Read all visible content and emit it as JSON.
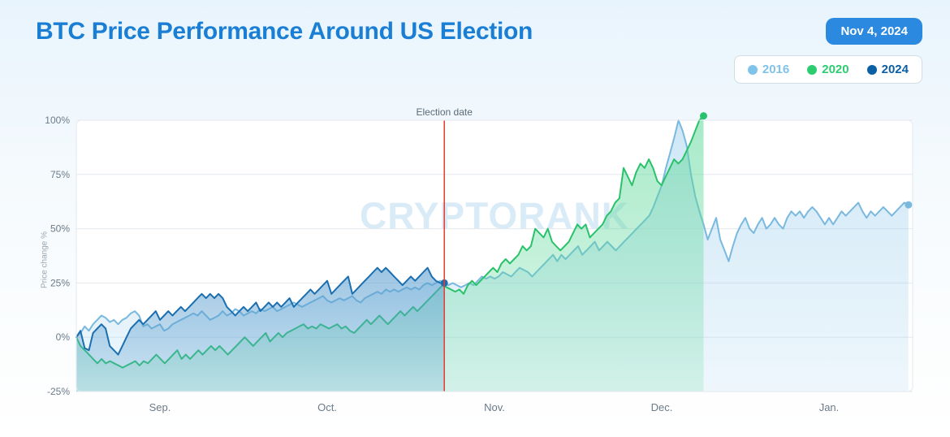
{
  "header": {
    "title": "BTC Price Performance Around US Election",
    "date_badge": "Nov 4, 2024"
  },
  "watermark": "CRYPTORANK",
  "y_axis_label": "Price change %",
  "legend": {
    "items": [
      {
        "label": "2016",
        "color": "#7fc3ea"
      },
      {
        "label": "2020",
        "color": "#2ecc71"
      },
      {
        "label": "2024",
        "color": "#0b5fa5"
      }
    ]
  },
  "chart": {
    "type": "area",
    "background_color": "#ffffff",
    "grid_color": "#e3e8ee",
    "ylim": [
      -25,
      100
    ],
    "ytick_step": 25,
    "y_ticks": [
      -25,
      0,
      25,
      50,
      75,
      100
    ],
    "y_tick_labels": [
      "-25%",
      "0%",
      "25%",
      "50%",
      "75%",
      "100%"
    ],
    "x_ticks": [
      20,
      60,
      100,
      140,
      180
    ],
    "x_tick_labels": [
      "Sep.",
      "Oct.",
      "Nov.",
      "Dec.",
      "Jan."
    ],
    "x_range": [
      0,
      200
    ],
    "election_line": {
      "x": 88,
      "color": "#e63b2e",
      "label": "Election date"
    },
    "series": [
      {
        "name": "2016",
        "color_line": "#79b9df",
        "color_fill": "#a7d4ef",
        "fill_opacity": 0.55,
        "line_width": 2,
        "end_dot": true,
        "values": [
          0,
          2,
          5,
          3,
          6,
          8,
          10,
          9,
          7,
          8,
          6,
          8,
          9,
          11,
          12,
          10,
          5,
          6,
          4,
          5,
          6,
          3,
          4,
          6,
          7,
          8,
          9,
          10,
          11,
          10,
          12,
          10,
          8,
          9,
          10,
          12,
          10,
          11,
          13,
          12,
          10,
          11,
          12,
          11,
          13,
          12,
          13,
          14,
          12,
          13,
          14,
          15,
          16,
          15,
          14,
          15,
          16,
          17,
          18,
          19,
          17,
          16,
          17,
          18,
          17,
          18,
          19,
          17,
          16,
          18,
          19,
          20,
          21,
          20,
          22,
          21,
          22,
          21,
          22,
          23,
          22,
          23,
          22,
          24,
          25,
          24,
          25,
          26,
          25,
          24,
          25,
          24,
          23,
          24,
          25,
          24,
          26,
          28,
          27,
          28,
          27,
          28,
          30,
          29,
          28,
          30,
          32,
          31,
          30,
          28,
          30,
          32,
          34,
          36,
          38,
          35,
          38,
          36,
          38,
          40,
          42,
          38,
          40,
          42,
          44,
          40,
          42,
          44,
          42,
          40,
          42,
          44,
          46,
          48,
          50,
          52,
          54,
          56,
          60,
          65,
          70,
          78,
          85,
          92,
          100,
          95,
          88,
          75,
          65,
          58,
          52,
          45,
          50,
          55,
          45,
          40,
          35,
          42,
          48,
          52,
          55,
          50,
          48,
          52,
          55,
          50,
          52,
          55,
          52,
          50,
          55,
          58,
          56,
          58,
          55,
          58,
          60,
          58,
          55,
          52,
          55,
          52,
          55,
          58,
          56,
          58,
          60,
          62,
          58,
          55,
          58,
          56,
          58,
          60,
          58,
          56,
          58,
          60,
          62,
          61
        ]
      },
      {
        "name": "2020",
        "color_line": "#29c26b",
        "color_fill": "#5fd89a",
        "fill_opacity": 0.55,
        "line_width": 2,
        "end_dot": true,
        "end_x": 150,
        "values": [
          0,
          -4,
          -6,
          -8,
          -10,
          -12,
          -10,
          -12,
          -11,
          -12,
          -13,
          -14,
          -13,
          -12,
          -11,
          -13,
          -11,
          -12,
          -10,
          -8,
          -10,
          -12,
          -10,
          -8,
          -6,
          -10,
          -8,
          -10,
          -8,
          -6,
          -8,
          -6,
          -4,
          -6,
          -4,
          -6,
          -8,
          -6,
          -4,
          -2,
          0,
          -2,
          -4,
          -2,
          0,
          2,
          -2,
          0,
          2,
          0,
          2,
          3,
          4,
          5,
          6,
          4,
          5,
          4,
          6,
          5,
          4,
          5,
          6,
          4,
          5,
          3,
          2,
          4,
          6,
          8,
          6,
          8,
          10,
          8,
          6,
          8,
          10,
          12,
          10,
          12,
          14,
          12,
          14,
          16,
          18,
          20,
          22,
          24,
          23,
          22,
          21,
          22,
          20,
          24,
          26,
          24,
          26,
          28,
          30,
          32,
          30,
          34,
          36,
          34,
          36,
          38,
          42,
          40,
          42,
          50,
          48,
          46,
          50,
          44,
          42,
          40,
          42,
          44,
          48,
          52,
          50,
          52,
          46,
          48,
          50,
          52,
          56,
          58,
          62,
          64,
          78,
          74,
          70,
          76,
          80,
          78,
          82,
          78,
          72,
          70,
          74,
          78,
          82,
          80,
          82,
          86,
          90,
          95,
          100,
          102
        ]
      },
      {
        "name": "2024",
        "color_line": "#1b6fb0",
        "color_fill": "#5a9ecf",
        "fill_opacity": 0.6,
        "line_width": 2,
        "end_dot": true,
        "end_x": 88,
        "values": [
          0,
          3,
          -5,
          -6,
          2,
          4,
          6,
          4,
          -4,
          -6,
          -8,
          -4,
          0,
          4,
          6,
          8,
          6,
          8,
          10,
          12,
          8,
          10,
          12,
          10,
          12,
          14,
          12,
          14,
          16,
          18,
          20,
          18,
          20,
          18,
          20,
          18,
          14,
          12,
          10,
          12,
          14,
          12,
          14,
          16,
          12,
          14,
          16,
          14,
          16,
          14,
          16,
          18,
          14,
          16,
          18,
          20,
          22,
          20,
          22,
          24,
          26,
          20,
          22,
          24,
          26,
          28,
          20,
          22,
          24,
          26,
          28,
          30,
          32,
          30,
          32,
          30,
          28,
          26,
          24,
          26,
          28,
          26,
          28,
          30,
          32,
          28,
          26,
          25,
          25
        ]
      }
    ]
  }
}
